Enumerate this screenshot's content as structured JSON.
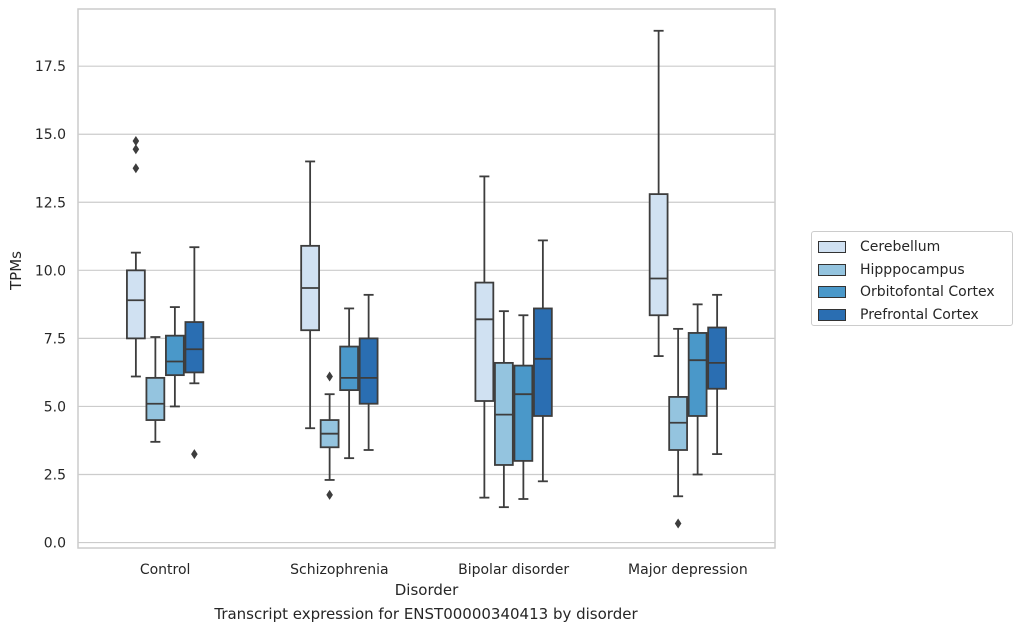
{
  "chart_data": {
    "type": "box",
    "title": "",
    "caption": "Transcript expression for ENST00000340413 by disorder",
    "xlabel": "Disorder",
    "ylabel": "TPMs",
    "ylim": [
      -0.2,
      19.6
    ],
    "yticks": [
      "0.0",
      "2.5",
      "5.0",
      "7.5",
      "10.0",
      "12.5",
      "15.0",
      "17.5"
    ],
    "ytick_values": [
      0,
      2.5,
      5,
      7.5,
      10,
      12.5,
      15,
      17.5
    ],
    "grid": "horizontal",
    "legend_position": "right",
    "categories": [
      "Control",
      "Schizophrenia",
      "Bipolar disorder",
      "Major depression"
    ],
    "series": [
      {
        "name": "Cerebellum",
        "color": "#d0e1f2",
        "boxes": [
          {
            "whisker_low": 6.1,
            "q1": 7.5,
            "median": 8.9,
            "q3": 10.0,
            "whisker_high": 10.65,
            "outliers": [
              13.75,
              14.45,
              14.75
            ]
          },
          {
            "whisker_low": 4.2,
            "q1": 7.8,
            "median": 9.35,
            "q3": 10.9,
            "whisker_high": 14.0,
            "outliers": []
          },
          {
            "whisker_low": 1.65,
            "q1": 5.2,
            "median": 8.2,
            "q3": 9.55,
            "whisker_high": 13.45,
            "outliers": []
          },
          {
            "whisker_low": 6.85,
            "q1": 8.35,
            "median": 9.7,
            "q3": 12.8,
            "whisker_high": 18.8,
            "outliers": []
          }
        ]
      },
      {
        "name": "Hipppocampus",
        "color": "#94c4df",
        "boxes": [
          {
            "whisker_low": 3.7,
            "q1": 4.5,
            "median": 5.1,
            "q3": 6.05,
            "whisker_high": 7.55,
            "outliers": []
          },
          {
            "whisker_low": 2.3,
            "q1": 3.5,
            "median": 4.0,
            "q3": 4.5,
            "whisker_high": 5.45,
            "outliers": [
              1.75,
              6.1
            ]
          },
          {
            "whisker_low": 1.3,
            "q1": 2.85,
            "median": 4.7,
            "q3": 6.6,
            "whisker_high": 8.5,
            "outliers": []
          },
          {
            "whisker_low": 1.7,
            "q1": 3.4,
            "median": 4.4,
            "q3": 5.35,
            "whisker_high": 7.85,
            "outliers": [
              0.7
            ]
          }
        ]
      },
      {
        "name": "Orbitofontal Cortex",
        "color": "#4a98c9",
        "boxes": [
          {
            "whisker_low": 5.0,
            "q1": 6.15,
            "median": 6.65,
            "q3": 7.6,
            "whisker_high": 8.65,
            "outliers": []
          },
          {
            "whisker_low": 3.1,
            "q1": 5.6,
            "median": 6.05,
            "q3": 7.2,
            "whisker_high": 8.6,
            "outliers": []
          },
          {
            "whisker_low": 1.6,
            "q1": 3.0,
            "median": 5.45,
            "q3": 6.5,
            "whisker_high": 8.35,
            "outliers": []
          },
          {
            "whisker_low": 2.5,
            "q1": 4.65,
            "median": 6.7,
            "q3": 7.7,
            "whisker_high": 8.75,
            "outliers": []
          }
        ]
      },
      {
        "name": "Prefrontal Cortex",
        "color": "#2a6eb2",
        "boxes": [
          {
            "whisker_low": 5.85,
            "q1": 6.25,
            "median": 7.1,
            "q3": 8.1,
            "whisker_high": 10.85,
            "outliers": [
              3.25
            ]
          },
          {
            "whisker_low": 3.4,
            "q1": 5.1,
            "median": 6.05,
            "q3": 7.5,
            "whisker_high": 9.1,
            "outliers": []
          },
          {
            "whisker_low": 2.25,
            "q1": 4.65,
            "median": 6.75,
            "q3": 8.6,
            "whisker_high": 11.1,
            "outliers": []
          },
          {
            "whisker_low": 3.25,
            "q1": 5.65,
            "median": 6.6,
            "q3": 7.9,
            "whisker_high": 9.1,
            "outliers": []
          }
        ]
      }
    ]
  }
}
